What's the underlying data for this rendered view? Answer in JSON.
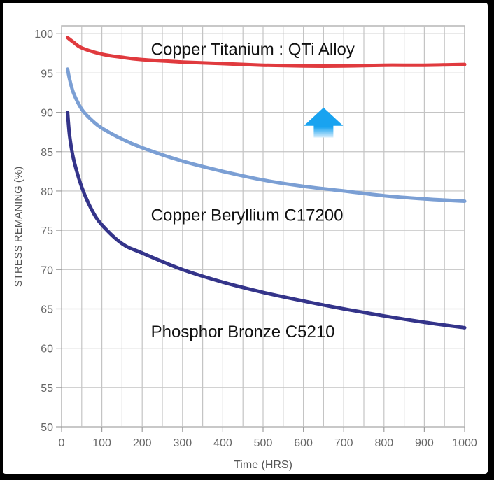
{
  "chart_data": {
    "type": "line",
    "title": "",
    "xlabel": "Time (HRS)",
    "ylabel": "STRESS REMANING (%)",
    "xlim": [
      0,
      1000
    ],
    "ylim": [
      50,
      101
    ],
    "x_ticks": [
      0,
      100,
      200,
      300,
      400,
      500,
      600,
      700,
      800,
      900,
      1000
    ],
    "y_ticks": [
      50,
      55,
      60,
      65,
      70,
      75,
      80,
      85,
      90,
      95,
      100
    ],
    "grid": true,
    "legend": "none",
    "series": [
      {
        "name": "Copper Titanium : QTi Alloy",
        "color": "#e03a3e",
        "points": [
          [
            15,
            99.5
          ],
          [
            30,
            98.9
          ],
          [
            50,
            98.2
          ],
          [
            100,
            97.4
          ],
          [
            150,
            97.0
          ],
          [
            200,
            96.7
          ],
          [
            300,
            96.4
          ],
          [
            400,
            96.2
          ],
          [
            500,
            96.0
          ],
          [
            600,
            95.9
          ],
          [
            700,
            95.9
          ],
          [
            800,
            96.0
          ],
          [
            900,
            96.0
          ],
          [
            1000,
            96.1
          ]
        ]
      },
      {
        "name": "Copper Beryllium C17200",
        "color": "#7b9fd4",
        "points": [
          [
            15,
            95.5
          ],
          [
            20,
            94.2
          ],
          [
            30,
            92.4
          ],
          [
            50,
            90.4
          ],
          [
            75,
            89.0
          ],
          [
            100,
            88.0
          ],
          [
            150,
            86.6
          ],
          [
            200,
            85.5
          ],
          [
            300,
            83.8
          ],
          [
            400,
            82.5
          ],
          [
            500,
            81.4
          ],
          [
            600,
            80.6
          ],
          [
            700,
            80.0
          ],
          [
            800,
            79.4
          ],
          [
            900,
            79.0
          ],
          [
            1000,
            78.7
          ]
        ]
      },
      {
        "name": "Phosphor Bronze C5210",
        "color": "#34348a",
        "points": [
          [
            15,
            90.0
          ],
          [
            20,
            87.0
          ],
          [
            30,
            84.0
          ],
          [
            50,
            80.5
          ],
          [
            75,
            77.6
          ],
          [
            100,
            75.7
          ],
          [
            150,
            73.3
          ],
          [
            200,
            72.1
          ],
          [
            300,
            70.0
          ],
          [
            400,
            68.4
          ],
          [
            500,
            67.1
          ],
          [
            600,
            66.0
          ],
          [
            700,
            65.0
          ],
          [
            800,
            64.1
          ],
          [
            900,
            63.3
          ],
          [
            1000,
            62.6
          ]
        ]
      }
    ],
    "annotations": [
      {
        "text": "Copper Titanium : QTi Alloy",
        "x": 430,
        "y": 97.3
      },
      {
        "text": "Copper Beryllium C17200",
        "x": 430,
        "y": 76.2
      },
      {
        "text": "Phosphor Bronze C5210",
        "x": 430,
        "y": 61.4
      }
    ],
    "arrow": {
      "direction": "up",
      "x": 650,
      "y_from": 86.8,
      "y_to": 90.6,
      "color": "#19a3f0"
    }
  }
}
